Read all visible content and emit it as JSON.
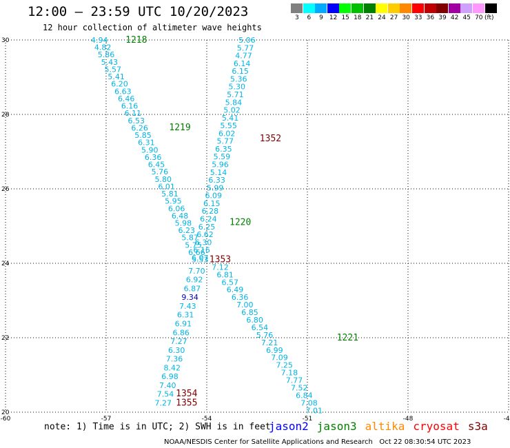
{
  "header": {
    "title": "12:00 – 23:59 UTC 10/20/2023",
    "subtitle": "12 hour collection of altimeter wave heights"
  },
  "legend": {
    "unit": "(ft)",
    "items": [
      {
        "label": "3",
        "color": "#808080"
      },
      {
        "label": "6",
        "color": "#00ffff"
      },
      {
        "label": "9",
        "color": "#00aaff"
      },
      {
        "label": "12",
        "color": "#0000ff"
      },
      {
        "label": "15",
        "color": "#00ff00"
      },
      {
        "label": "18",
        "color": "#00c000"
      },
      {
        "label": "21",
        "color": "#008000"
      },
      {
        "label": "24",
        "color": "#ffff00"
      },
      {
        "label": "27",
        "color": "#ffcc00"
      },
      {
        "label": "30",
        "color": "#ff8800"
      },
      {
        "label": "33",
        "color": "#ff0000"
      },
      {
        "label": "36",
        "color": "#c00000"
      },
      {
        "label": "39",
        "color": "#800000"
      },
      {
        "label": "42",
        "color": "#a000a0"
      },
      {
        "label": "45",
        "color": "#d0a0ff"
      },
      {
        "label": "70",
        "color": "#ff99ff"
      },
      {
        "label": "",
        "color": "#000000"
      }
    ]
  },
  "map": {
    "lat_range": [
      20,
      30
    ],
    "lon_range": [
      -60,
      -45
    ],
    "lat_ticks": [
      "20",
      "22",
      "24",
      "26",
      "28",
      "30"
    ],
    "lat_tick_values": [
      20,
      22,
      24,
      26,
      28,
      30
    ],
    "lon_ticks": [
      "-60",
      "-57",
      "-54",
      "-51",
      "-48",
      "-45"
    ],
    "lon_tick_values": [
      -60,
      -57,
      -54,
      -51,
      -48,
      -45
    ],
    "grid": "dotted",
    "colors": {
      "obs": "#00b4e6",
      "obs_high": "#0000c0",
      "pass_green": "#008000",
      "pass_maroon": "#800000"
    },
    "tracks": [
      {
        "values": [
          "4.94",
          "4.82",
          "5.86",
          "5.43",
          "5.57",
          "5.41",
          "6.20",
          "6.63",
          "6.46",
          "6.16",
          "6.11",
          "6.53",
          "6.26",
          "5.85",
          "6.31",
          "5.90",
          "6.36",
          "6.45",
          "5.76",
          "5.80",
          "6.01",
          "5.81",
          "5.95",
          "6.06",
          "6.48",
          "5.98",
          "6.23",
          "5.87",
          "5.75",
          "6.66",
          "5.53"
        ],
        "lat_start": 30.0,
        "lat_end": 24.1,
        "lon_start": -57.2,
        "lon_end": -54.2
      },
      {
        "values": [
          "7.70",
          "6.92",
          "6.87",
          "9.34",
          "7.43",
          "6.31",
          "6.91",
          "6.86",
          "7.27",
          "6.30",
          "7.36",
          "8.42",
          "6.98",
          "7.40",
          "7.54",
          "7.27"
        ],
        "lat_start": 23.8,
        "lat_end": 20.25,
        "lon_start": -54.3,
        "lon_end": -55.3
      },
      {
        "values": [
          "5.06",
          "5.77",
          "4.77",
          "6.14",
          "6.15",
          "5.36",
          "5.30",
          "5.71",
          "5.84",
          "5.02",
          "5.41",
          "5.55",
          "6.02",
          "5.77",
          "6.35",
          "5.59",
          "5.96",
          "5.14",
          "6.33",
          "5.99",
          "6.09",
          "6.15",
          "6.28",
          "6.24",
          "6.25",
          "6.62",
          "6.30",
          "6.16",
          "6.07"
        ],
        "lat_start": 30.0,
        "lat_end": 24.15,
        "lon_start": -52.8,
        "lon_end": -54.2
      },
      {
        "values": [
          "7.12",
          "6.81",
          "6.57",
          "6.49",
          "6.36",
          "7.00",
          "6.85",
          "6.80",
          "6.54",
          "5.76",
          "7.21",
          "6.99",
          "7.09",
          "7.25",
          "7.18",
          "7.77",
          "7.52",
          "6.84",
          "7.08",
          "7.01"
        ],
        "lat_start": 23.9,
        "lat_end": 20.05,
        "lon_start": -53.6,
        "lon_end": -50.8
      }
    ],
    "pass_labels": [
      {
        "text": "1218",
        "lat": 30.0,
        "lon": -56.1,
        "color": "pass_green"
      },
      {
        "text": "1219",
        "lat": 27.65,
        "lon": -54.8,
        "color": "pass_green"
      },
      {
        "text": "1352",
        "lat": 27.35,
        "lon": -52.1,
        "color": "pass_maroon"
      },
      {
        "text": "1220",
        "lat": 25.1,
        "lon": -53.0,
        "color": "pass_green"
      },
      {
        "text": "1353",
        "lat": 24.1,
        "lon": -53.6,
        "color": "pass_maroon"
      },
      {
        "text": "1221",
        "lat": 22.0,
        "lon": -49.8,
        "color": "pass_green"
      },
      {
        "text": "1354",
        "lat": 20.5,
        "lon": -54.6,
        "color": "pass_maroon"
      },
      {
        "text": "1355",
        "lat": 20.25,
        "lon": -54.6,
        "color": "pass_maroon"
      }
    ]
  },
  "footer": {
    "note": "note: 1) Time is in UTC; 2) SWH is in feet",
    "missions": [
      {
        "name": "jason2",
        "color": "#0000ff"
      },
      {
        "name": "jason3",
        "color": "#008000"
      },
      {
        "name": "altika",
        "color": "#ff8800"
      },
      {
        "name": "cryosat",
        "color": "#ff0000"
      },
      {
        "name": "s3a",
        "color": "#800000"
      }
    ],
    "credit": "NOAA/NESDIS Center for Satellite Applications and Research   Oct 22 08:30:54 UTC 2023"
  }
}
